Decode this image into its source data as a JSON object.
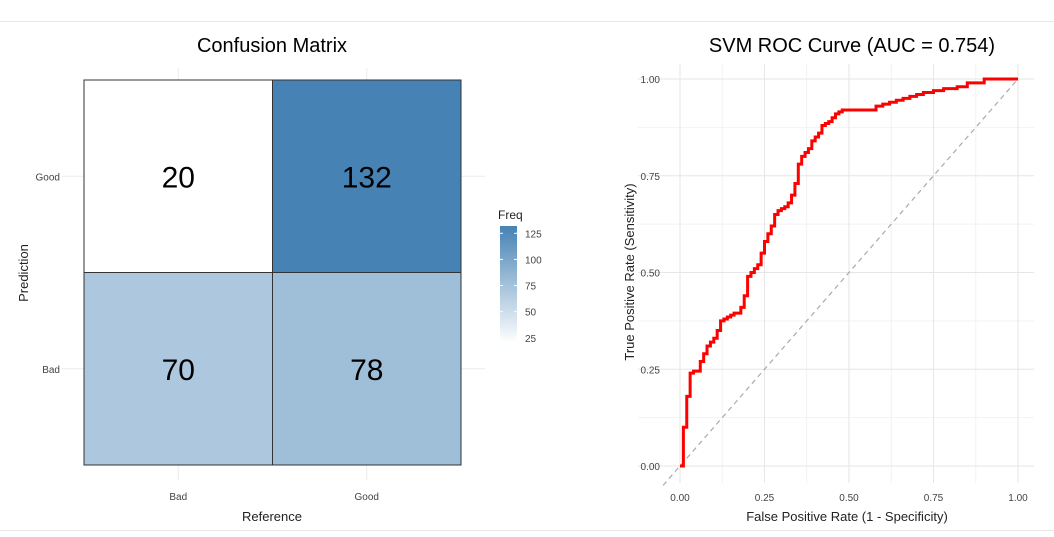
{
  "chart_data": [
    {
      "type": "heatmap",
      "title": "Confusion Matrix",
      "xlabel": "Reference",
      "ylabel": "Prediction",
      "x_categories": [
        "Bad",
        "Good"
      ],
      "y_categories": [
        "Good",
        "Bad"
      ],
      "cells": [
        {
          "reference": "Bad",
          "prediction": "Good",
          "value": 20
        },
        {
          "reference": "Good",
          "prediction": "Good",
          "value": 132
        },
        {
          "reference": "Bad",
          "prediction": "Bad",
          "value": 70
        },
        {
          "reference": "Good",
          "prediction": "Bad",
          "value": 78
        }
      ],
      "legend": {
        "title": "Freq",
        "ticks": [
          125,
          100,
          75,
          50,
          25
        ],
        "range": [
          20,
          132
        ],
        "color_low": "#ffffff",
        "color_high": "#4682b4",
        "placement": "right"
      }
    },
    {
      "type": "line",
      "title": "SVM ROC Curve (AUC = 0.754)",
      "xlabel": "False Positive Rate (1 - Specificity)",
      "ylabel": "True Positive Rate (Sensitivity)",
      "xlim": [
        0,
        1
      ],
      "ylim": [
        0,
        1
      ],
      "xticks": [
        "0.00",
        "0.25",
        "0.50",
        "0.75",
        "1.00"
      ],
      "yticks": [
        "0.00",
        "0.25",
        "0.50",
        "0.75",
        "1.00"
      ],
      "grid": true,
      "series": [
        {
          "color": "#ff0000",
          "x": [
            0,
            0.01,
            0.01,
            0.02,
            0.02,
            0.03,
            0.03,
            0.04,
            0.04,
            0.06,
            0.07,
            0.08,
            0.08,
            0.09,
            0.1,
            0.11,
            0.12,
            0.13,
            0.14,
            0.15,
            0.16,
            0.18,
            0.19,
            0.2,
            0.21,
            0.22,
            0.23,
            0.24,
            0.25,
            0.26,
            0.27,
            0.28,
            0.29,
            0.3,
            0.31,
            0.32,
            0.33,
            0.34,
            0.35,
            0.35,
            0.36,
            0.36,
            0.37,
            0.38,
            0.39,
            0.4,
            0.41,
            0.42,
            0.43,
            0.44,
            0.45,
            0.46,
            0.47,
            0.48,
            0.49,
            0.5,
            0.52,
            0.55,
            0.58,
            0.6,
            0.62,
            0.64,
            0.66,
            0.68,
            0.7,
            0.72,
            0.75,
            0.78,
            0.82,
            0.85,
            0.9,
            0.95,
            1.0
          ],
          "y": [
            0,
            0.03,
            0.1,
            0.11,
            0.18,
            0.22,
            0.24,
            0.245,
            0.245,
            0.27,
            0.29,
            0.3,
            0.31,
            0.32,
            0.33,
            0.35,
            0.375,
            0.38,
            0.385,
            0.39,
            0.395,
            0.41,
            0.44,
            0.49,
            0.5,
            0.51,
            0.52,
            0.55,
            0.58,
            0.6,
            0.62,
            0.65,
            0.66,
            0.665,
            0.67,
            0.68,
            0.7,
            0.73,
            0.76,
            0.78,
            0.8,
            0.8,
            0.81,
            0.82,
            0.84,
            0.85,
            0.86,
            0.88,
            0.885,
            0.89,
            0.9,
            0.91,
            0.915,
            0.92,
            0.92,
            0.92,
            0.92,
            0.92,
            0.93,
            0.935,
            0.94,
            0.945,
            0.95,
            0.955,
            0.96,
            0.965,
            0.97,
            0.975,
            0.98,
            0.99,
            1.0,
            1.0,
            1.0
          ]
        }
      ],
      "reference_line": {
        "x": [
          0,
          1
        ],
        "y": [
          0,
          1
        ],
        "style": "dashed"
      }
    }
  ]
}
